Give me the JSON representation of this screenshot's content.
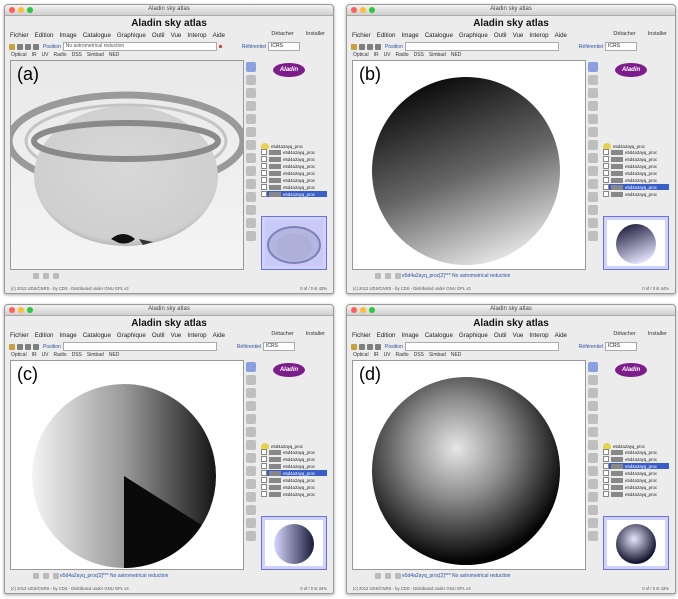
{
  "window_title": "Aladin sky atlas",
  "app_title": "Aladin sky atlas",
  "menu": [
    "Fichier",
    "Edition",
    "Image",
    "Catalogue",
    "Graphique",
    "Outil",
    "Vue",
    "Interop",
    "Aide"
  ],
  "detach": {
    "detach_label": "Détacher",
    "install_label": "Installer"
  },
  "toolbar": {
    "position_label": "Position",
    "position_value_a": "No astrometrical reduction",
    "frame_label": "Référentiel",
    "frame_value": "ICRS"
  },
  "surveys": [
    "Optical",
    "IR",
    "UV",
    "Radio",
    "DSS",
    "Simbad",
    "NED"
  ],
  "logo_text": "Aladin",
  "footer_left": "(c) 2012 UDS/CNRS - by CDS - Distributed under GNU GPL v3",
  "status_line": "e5d4a2ayq_proc[2]*** No astrometrical reduction",
  "stack_item": "e5d4a2ayq_proc",
  "panels": [
    {
      "label": "(a)",
      "footer_right": "0 of / 0 st   43%"
    },
    {
      "label": "(b)",
      "footer_right": "0 of / 0 st   44%"
    },
    {
      "label": "(c)",
      "footer_right": "0 of / 0 st   34%"
    },
    {
      "label": "(d)",
      "footer_right": "0 of / 0 st   43%"
    }
  ],
  "colors": {
    "accent": "#3a5ec8",
    "logo": "#7d1d8c",
    "selection": "#cfd2ff"
  }
}
